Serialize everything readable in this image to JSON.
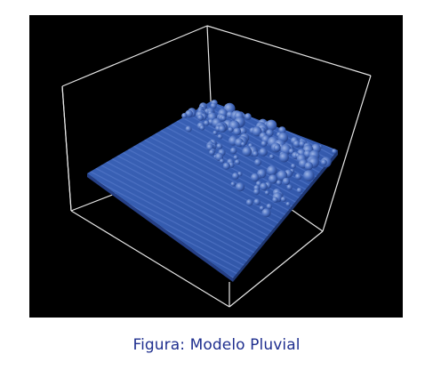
{
  "figure": {
    "caption": "Figura: Modelo Pluvial",
    "render_background": "#000000",
    "box_color": "#e6e6e6",
    "surface_color": "#3a62b5",
    "caption_color": "#1f2f8f"
  }
}
